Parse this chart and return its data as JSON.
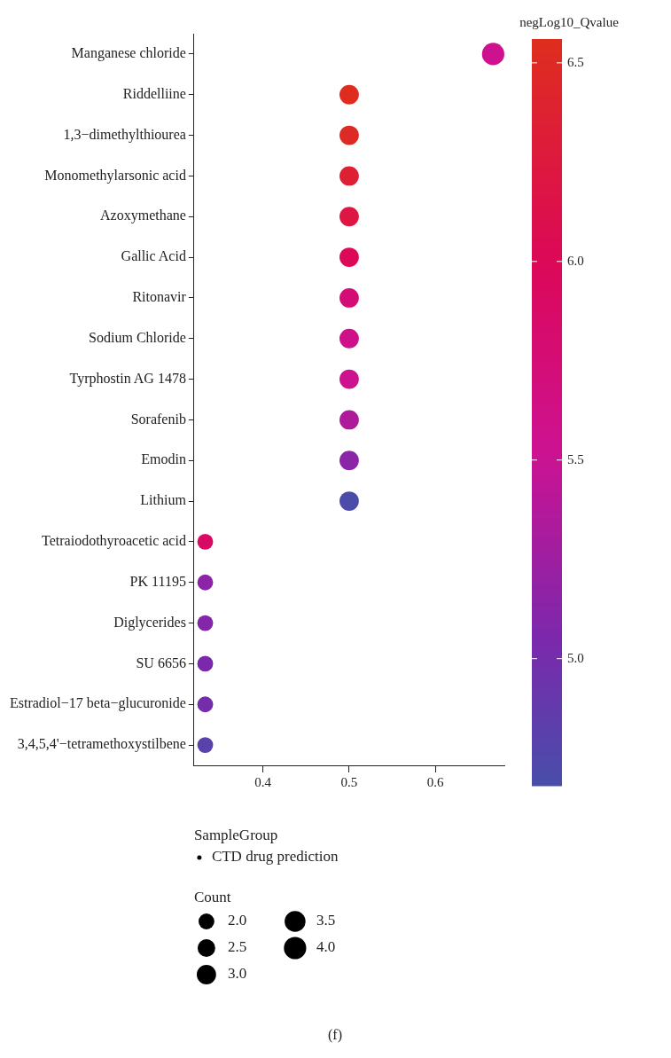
{
  "chart_data": {
    "type": "bubble",
    "categories": [
      "Manganese chloride",
      "Riddelliine",
      "1,3−dimethylthiourea",
      "Monomethylarsonic acid",
      "Azoxymethane",
      "Gallic Acid",
      "Ritonavir",
      "Sodium Chloride",
      "Tyrphostin AG 1478",
      "Sorafenib",
      "Emodin",
      "Lithium",
      "Tetraiodothyroacetic acid",
      "PK 11195",
      "Diglycerides",
      "SU 6656",
      "Estradiol−17 beta−glucuronide",
      "3,4,5,4'−tetramethoxystilbene"
    ],
    "series": [
      {
        "name": "CTD drug prediction",
        "values": [
          0.667,
          0.5,
          0.5,
          0.5,
          0.5,
          0.5,
          0.5,
          0.5,
          0.5,
          0.5,
          0.5,
          0.5,
          0.333,
          0.333,
          0.333,
          0.333,
          0.333,
          0.333
        ],
        "sizes": [
          4,
          3,
          3,
          3,
          3,
          3,
          3,
          3,
          3,
          3,
          3,
          3,
          2,
          2,
          2,
          2,
          2,
          2
        ],
        "cvalues": [
          5.55,
          6.55,
          6.5,
          6.35,
          6.2,
          6.0,
          5.75,
          5.6,
          5.55,
          5.35,
          5.15,
          4.7,
          5.9,
          5.15,
          5.1,
          5.05,
          5.0,
          4.8
        ]
      }
    ],
    "orientation": "horizontal",
    "xlim": [
      0.32,
      0.68
    ],
    "xticks": [
      0.4,
      0.5,
      0.6
    ],
    "size_legend": [
      {
        "value": 2,
        "label": "2.0"
      },
      {
        "value": 2.5,
        "label": "2.5"
      },
      {
        "value": 3,
        "label": "3.0"
      },
      {
        "value": 3.5,
        "label": "3.5"
      },
      {
        "value": 4,
        "label": "4.0"
      }
    ],
    "clabel": "negLog10_Qvalue",
    "clim": [
      4.68,
      6.56
    ],
    "cticks": [
      {
        "value": 5,
        "label": "5.0"
      },
      {
        "value": 5.5,
        "label": "5.5"
      },
      {
        "value": 6,
        "label": "6.0"
      },
      {
        "value": 6.5,
        "label": "6.5"
      }
    ],
    "legend_title": "SampleGroup",
    "legend": "bottom",
    "grid": false,
    "annotations": [
      "Count",
      "(f)"
    ]
  }
}
